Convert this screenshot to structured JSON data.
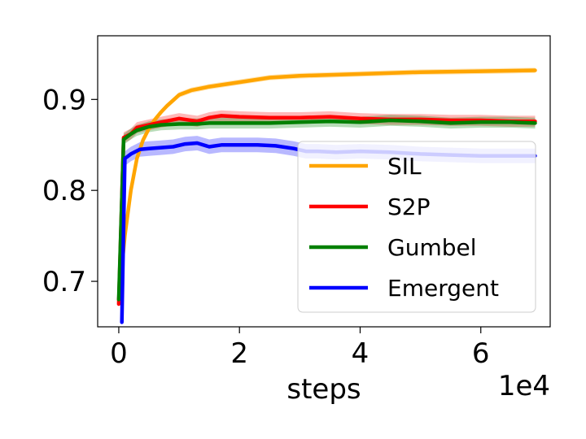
{
  "chart_data": {
    "type": "line",
    "xlabel": "steps",
    "x_multiplier_label": "1e4",
    "xlim": [
      -0.35,
      7.15
    ],
    "ylim": [
      0.65,
      0.97
    ],
    "xticks": [
      0,
      2,
      4,
      6
    ],
    "xtick_labels": [
      "0",
      "2",
      "4",
      "6"
    ],
    "yticks": [
      0.7,
      0.8,
      0.9
    ],
    "ytick_labels": [
      "0.7",
      "0.8",
      "0.9"
    ],
    "grid": false,
    "legend": {
      "placement": "lower-right"
    },
    "series": [
      {
        "name": "SIL",
        "color": "#FFA500",
        "x": [
          0,
          0.1,
          0.2,
          0.3,
          0.4,
          0.5,
          0.6,
          0.7,
          0.8,
          0.9,
          1.0,
          1.2,
          1.5,
          2.0,
          2.5,
          3.0,
          4.0,
          5.0,
          6.0,
          6.9
        ],
        "y": [
          0.68,
          0.75,
          0.8,
          0.835,
          0.855,
          0.868,
          0.878,
          0.886,
          0.893,
          0.899,
          0.905,
          0.91,
          0.914,
          0.919,
          0.924,
          0.926,
          0.928,
          0.93,
          0.931,
          0.932
        ],
        "band": 0.003
      },
      {
        "name": "S2P",
        "color": "#FF0000",
        "x": [
          0,
          0.08,
          0.2,
          0.3,
          0.5,
          0.7,
          1.0,
          1.3,
          1.5,
          1.7,
          2.0,
          2.5,
          3.0,
          3.5,
          4.0,
          4.5,
          5.0,
          5.5,
          6.0,
          6.5,
          6.9
        ],
        "y": [
          0.675,
          0.858,
          0.862,
          0.869,
          0.872,
          0.875,
          0.879,
          0.876,
          0.88,
          0.882,
          0.881,
          0.88,
          0.88,
          0.881,
          0.879,
          0.878,
          0.878,
          0.877,
          0.877,
          0.876,
          0.876
        ],
        "band": 0.006
      },
      {
        "name": "Gumbel",
        "color": "#008000",
        "x": [
          0,
          0.08,
          0.2,
          0.3,
          0.5,
          0.7,
          1.0,
          1.3,
          1.5,
          2.0,
          2.5,
          3.0,
          3.5,
          4.0,
          4.5,
          5.0,
          5.5,
          6.0,
          6.5,
          6.9
        ],
        "y": [
          0.68,
          0.856,
          0.862,
          0.866,
          0.87,
          0.872,
          0.873,
          0.873,
          0.874,
          0.874,
          0.874,
          0.875,
          0.876,
          0.875,
          0.877,
          0.876,
          0.874,
          0.875,
          0.875,
          0.874
        ],
        "band": 0.006
      },
      {
        "name": "Emergent",
        "color": "#0000FF",
        "x": [
          0.05,
          0.1,
          0.2,
          0.35,
          0.5,
          0.7,
          0.9,
          1.1,
          1.3,
          1.5,
          1.7,
          2.0,
          2.3,
          2.6,
          2.9,
          3.1,
          3.3,
          3.6,
          4.0,
          4.5,
          5.0,
          5.5,
          6.0,
          6.5,
          6.9
        ],
        "y": [
          0.655,
          0.835,
          0.84,
          0.845,
          0.846,
          0.847,
          0.848,
          0.851,
          0.852,
          0.848,
          0.85,
          0.85,
          0.85,
          0.849,
          0.846,
          0.843,
          0.843,
          0.842,
          0.843,
          0.842,
          0.84,
          0.839,
          0.838,
          0.838,
          0.838
        ],
        "band": 0.008
      }
    ]
  }
}
